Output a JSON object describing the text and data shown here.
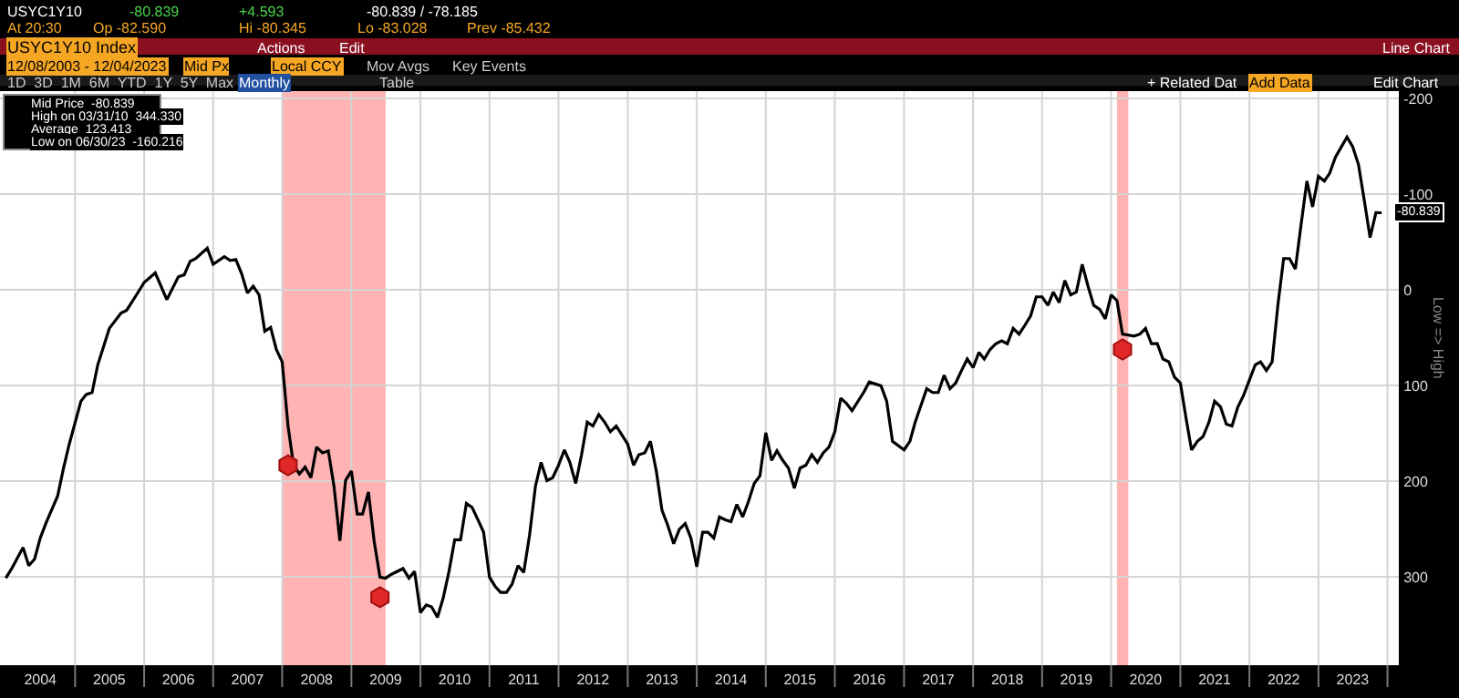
{
  "chart_data": {
    "type": "line",
    "title": "USYC1Y10 Index",
    "ylabel": "Low => High",
    "annotations": [
      "USYC1Y10",
      "-80.839",
      "+4.593",
      "-80.839 / -78.185",
      "At 20:30",
      "Op -82.590",
      "Hi -80.345",
      "Lo -83.028",
      "Prev -85.432",
      "Actions",
      "Edit",
      "Line Chart",
      "12/08/2003 - 12/04/2023",
      "Mid Px",
      "Local CCY",
      "Mov Avgs",
      "Key Events",
      "1D  3D  1M  6M  YTD  1Y  5Y  Max",
      "Monthly",
      "Table",
      "+ Related Dat",
      "Add Data",
      "Edit Chart",
      "Mid Price  -80.839",
      "High on 03/31/10  344.330",
      "Average  123.413",
      "Low on 06/30/23  -160.216",
      {
        "text": "-80.839",
        "x": "2023-12",
        "y": -80.839
      }
    ],
    "series": [
      {
        "color": "#000000",
        "x": [
          "2004-01",
          "2004-02",
          "2004-04",
          "2004-05",
          "2004-06",
          "2004-07",
          "2004-08",
          "2004-10",
          "2004-11",
          "2004-12",
          "2005-02",
          "2005-03",
          "2005-04",
          "2005-05",
          "2005-07",
          "2005-09",
          "2005-10",
          "2005-12",
          "2006-01",
          "2006-03",
          "2006-05",
          "2006-07",
          "2006-08",
          "2006-09",
          "2006-10",
          "2006-12",
          "2007-01",
          "2007-03",
          "2007-04",
          "2007-05",
          "2007-06",
          "2007-07",
          "2007-08",
          "2007-09",
          "2007-10",
          "2007-11",
          "2007-12",
          "2008-01",
          "2008-02",
          "2008-03",
          "2008-04",
          "2008-05",
          "2008-06",
          "2008-07",
          "2008-08",
          "2008-09",
          "2008-10",
          "2008-11",
          "2008-12",
          "2009-01",
          "2009-02",
          "2009-03",
          "2009-04",
          "2009-05",
          "2009-06",
          "2009-07",
          "2009-08",
          "2009-10",
          "2009-11",
          "2009-12",
          "2010-01",
          "2010-02",
          "2010-03",
          "2010-04",
          "2010-05",
          "2010-06",
          "2010-07",
          "2010-08",
          "2010-09",
          "2010-10",
          "2010-11",
          "2010-12",
          "2011-01",
          "2011-02",
          "2011-03",
          "2011-04",
          "2011-05",
          "2011-06",
          "2011-07",
          "2011-08",
          "2011-09",
          "2011-10",
          "2011-11",
          "2011-12",
          "2012-01",
          "2012-02",
          "2012-03",
          "2012-04",
          "2012-05",
          "2012-06",
          "2012-07",
          "2012-08",
          "2012-09",
          "2012-10",
          "2012-11",
          "2013-01",
          "2013-02",
          "2013-03",
          "2013-04",
          "2013-05",
          "2013-06",
          "2013-07",
          "2013-08",
          "2013-09",
          "2013-10",
          "2013-11",
          "2013-12",
          "2014-01",
          "2014-02",
          "2014-03",
          "2014-04",
          "2014-05",
          "2014-06",
          "2014-07",
          "2014-08",
          "2014-09",
          "2014-10",
          "2014-11",
          "2014-12",
          "2015-01",
          "2015-02",
          "2015-03",
          "2015-04",
          "2015-05",
          "2015-06",
          "2015-07",
          "2015-08",
          "2015-09",
          "2015-10",
          "2015-11",
          "2015-12",
          "2016-01",
          "2016-02",
          "2016-03",
          "2016-04",
          "2016-06",
          "2016-07",
          "2016-09",
          "2016-10",
          "2016-11",
          "2017-01",
          "2017-02",
          "2017-03",
          "2017-05",
          "2017-06",
          "2017-07",
          "2017-08",
          "2017-09",
          "2017-10",
          "2017-11",
          "2017-12",
          "2018-01",
          "2018-02",
          "2018-03",
          "2018-04",
          "2018-05",
          "2018-06",
          "2018-07",
          "2018-08",
          "2018-09",
          "2018-10",
          "2018-11",
          "2018-12",
          "2019-01",
          "2019-02",
          "2019-03",
          "2019-04",
          "2019-05",
          "2019-06",
          "2019-07",
          "2019-08",
          "2019-09",
          "2019-10",
          "2019-11",
          "2019-12",
          "2020-01",
          "2020-02",
          "2020-03",
          "2020-05",
          "2020-06",
          "2020-07",
          "2020-08",
          "2020-09",
          "2020-10",
          "2020-11",
          "2020-12",
          "2021-01",
          "2021-02",
          "2021-03",
          "2021-04",
          "2021-05",
          "2021-06",
          "2021-07",
          "2021-08",
          "2021-09",
          "2021-10",
          "2021-11",
          "2021-12",
          "2022-01",
          "2022-02",
          "2022-03",
          "2022-04",
          "2022-05",
          "2022-06",
          "2022-07",
          "2022-08",
          "2022-09",
          "2022-10",
          "2022-11",
          "2022-12",
          "2023-01",
          "2023-02",
          "2023-03",
          "2023-04",
          "2023-06",
          "2023-07",
          "2023-08",
          "2023-09",
          "2023-10",
          "2023-11",
          "2023-12"
        ],
        "values": [
          301,
          291,
          269,
          288,
          281,
          259,
          243,
          215,
          186,
          161,
          116,
          109,
          107,
          78,
          40,
          24,
          21,
          2,
          -8,
          -18,
          10,
          -14,
          -16,
          -30,
          -33,
          -44,
          -27,
          -35,
          -31,
          -32,
          -17,
          3,
          -4,
          5,
          43,
          39,
          62,
          75,
          142,
          183,
          192,
          185,
          196,
          164,
          170,
          168,
          205,
          262,
          199,
          189,
          234,
          234,
          211,
          262,
          300,
          301,
          297,
          291,
          301,
          294,
          337,
          329,
          331,
          342,
          322,
          294,
          261,
          261,
          223,
          227,
          240,
          253,
          300,
          310,
          316,
          316,
          307,
          288,
          295,
          256,
          205,
          180,
          199,
          196,
          183,
          167,
          180,
          202,
          173,
          138,
          142,
          130,
          138,
          148,
          142,
          161,
          183,
          172,
          170,
          158,
          189,
          230,
          246,
          265,
          250,
          244,
          259,
          289,
          253,
          253,
          259,
          237,
          240,
          242,
          224,
          237,
          221,
          202,
          194,
          149,
          178,
          168,
          178,
          186,
          207,
          186,
          183,
          172,
          180,
          170,
          164,
          148,
          113,
          118,
          126,
          107,
          96,
          100,
          116,
          158,
          167,
          158,
          138,
          103,
          107,
          107,
          89,
          103,
          97,
          84,
          72,
          81,
          65,
          72,
          62,
          56,
          53,
          56,
          40,
          46,
          37,
          27,
          7,
          7,
          16,
          2,
          13,
          -10,
          5,
          2,
          -27,
          -4,
          16,
          20,
          30,
          5,
          11,
          46,
          48,
          46,
          40,
          56,
          56,
          72,
          75,
          91,
          97,
          135,
          167,
          158,
          153,
          138,
          116,
          122,
          140,
          142,
          122,
          110,
          94,
          78,
          75,
          84,
          75,
          15,
          -33,
          -33,
          -22,
          -68,
          -114,
          -87,
          -119,
          -114,
          -122,
          -139,
          -160,
          -150,
          -131,
          -93,
          -55,
          -81,
          -80.839
        ]
      },
      {
        "type": "scatter",
        "color": "#e02828",
        "marker": "circle",
        "x": [
          "2008-02",
          "2009-06",
          "2020-03"
        ],
        "values": [
          183,
          321,
          62
        ]
      }
    ],
    "xlim": [
      "2003-12-01",
      "2024-03-01"
    ],
    "xticks": [
      {
        "value": "2004-07-01",
        "label": "2004"
      },
      {
        "value": "2005-01-01",
        "label": null
      },
      {
        "value": "2005-07-01",
        "label": "2005"
      },
      {
        "value": "2006-01-01",
        "label": null
      },
      {
        "value": "2006-07-01",
        "label": "2006"
      },
      {
        "value": "2007-01-01",
        "label": null
      },
      {
        "value": "2007-07-01",
        "label": "2007"
      },
      {
        "value": "2008-01-01",
        "label": null
      },
      {
        "value": "2008-07-01",
        "label": "2008"
      },
      {
        "value": "2009-01-01",
        "label": null
      },
      {
        "value": "2009-07-01",
        "label": "2009"
      },
      {
        "value": "2010-01-01",
        "label": null
      },
      {
        "value": "2010-07-01",
        "label": "2010"
      },
      {
        "value": "2011-01-01",
        "label": null
      },
      {
        "value": "2011-07-01",
        "label": "2011"
      },
      {
        "value": "2012-01-01",
        "label": null
      },
      {
        "value": "2012-07-01",
        "label": "2012"
      },
      {
        "value": "2013-01-01",
        "label": null
      },
      {
        "value": "2013-07-01",
        "label": "2013"
      },
      {
        "value": "2014-01-01",
        "label": null
      },
      {
        "value": "2014-07-01",
        "label": "2014"
      },
      {
        "value": "2015-01-01",
        "label": null
      },
      {
        "value": "2015-07-01",
        "label": "2015"
      },
      {
        "value": "2016-01-01",
        "label": null
      },
      {
        "value": "2016-07-01",
        "label": "2016"
      },
      {
        "value": "2017-01-01",
        "label": null
      },
      {
        "value": "2017-07-01",
        "label": "2017"
      },
      {
        "value": "2018-01-01",
        "label": null
      },
      {
        "value": "2018-07-01",
        "label": "2018"
      },
      {
        "value": "2019-01-01",
        "label": null
      },
      {
        "value": "2019-07-01",
        "label": "2019"
      },
      {
        "value": "2020-01-01",
        "label": null
      },
      {
        "value": "2020-07-01",
        "label": "2020"
      },
      {
        "value": "2021-01-01",
        "label": null
      },
      {
        "value": "2021-07-01",
        "label": "2021"
      },
      {
        "value": "2022-01-01",
        "label": null
      },
      {
        "value": "2022-07-01",
        "label": "2022"
      },
      {
        "value": "2023-01-01",
        "label": null
      },
      {
        "value": "2023-07-01",
        "label": "2023"
      },
      {
        "value": "2024-01-01",
        "label": null
      }
    ],
    "ylim": [
      392,
      -208
    ],
    "yticks": [
      -200,
      -100,
      0,
      100,
      200,
      300
    ],
    "grid": true,
    "bands": [
      {
        "axis": "x",
        "from": "2008-01",
        "to": "2009-07",
        "color": "#ffb3b3"
      },
      {
        "axis": "x",
        "from": "2020-02",
        "to": "2020-04",
        "color": "#ffb3b3"
      }
    ]
  }
}
